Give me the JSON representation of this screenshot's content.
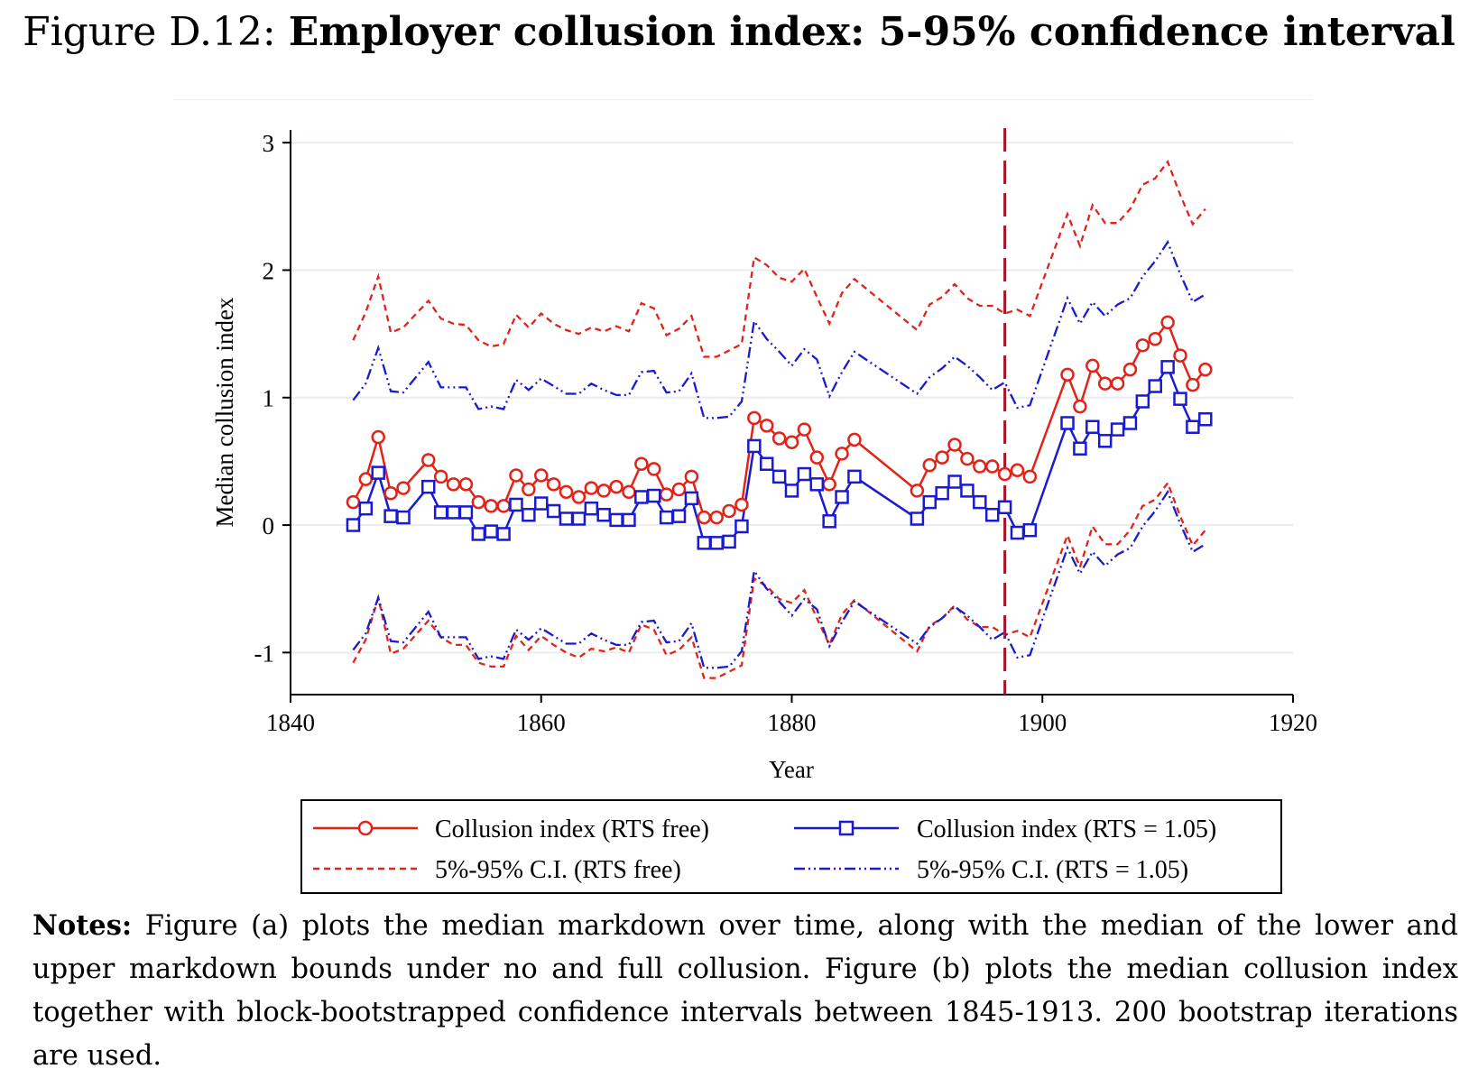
{
  "figure": {
    "label": "Figure D.12:",
    "title": "Employer collusion index: 5-95% confidence interval"
  },
  "notes": {
    "label": "Notes:",
    "text": "Figure (a) plots the median markdown over time, along with the median of the lower and upper markdown bounds under no and full collusion. Figure (b) plots the median collusion index together with block-bootstrapped confidence intervals between 1845-1913. 200 bootstrap iterations are used."
  },
  "colors": {
    "red": "#e2231a",
    "blue": "#1a1ad0",
    "vline": "#a3162b",
    "grid": "#e6eeee"
  },
  "chart_data": {
    "type": "line",
    "xlabel": "Year",
    "ylabel": "Median collusion index",
    "xlim": [
      1840,
      1920
    ],
    "ylim": [
      -1.33,
      3.1
    ],
    "xticks": [
      1840,
      1860,
      1880,
      1900,
      1920
    ],
    "yticks": [
      -1,
      0,
      1,
      2,
      3
    ],
    "grid": true,
    "vline_x": 1897,
    "legend_position": "bottom",
    "x": [
      1845,
      1846,
      1847,
      1848,
      1849,
      1851,
      1852,
      1853,
      1854,
      1855,
      1856,
      1857,
      1858,
      1859,
      1860,
      1861,
      1862,
      1863,
      1864,
      1865,
      1866,
      1867,
      1868,
      1869,
      1870,
      1871,
      1872,
      1873,
      1874,
      1875,
      1876,
      1877,
      1878,
      1879,
      1880,
      1881,
      1882,
      1883,
      1884,
      1885,
      1890,
      1891,
      1892,
      1893,
      1894,
      1895,
      1896,
      1897,
      1898,
      1899,
      1902,
      1903,
      1904,
      1905,
      1906,
      1907,
      1908,
      1909,
      1910,
      1911,
      1912,
      1913
    ],
    "series": [
      {
        "name": "Collusion index (RTS free)",
        "color": "#e2231a",
        "style": "solid",
        "marker": "circle",
        "values": [
          0.18,
          0.36,
          0.69,
          0.25,
          0.29,
          0.51,
          0.38,
          0.32,
          0.32,
          0.18,
          0.15,
          0.15,
          0.39,
          0.28,
          0.39,
          0.32,
          0.26,
          0.22,
          0.29,
          0.27,
          0.3,
          0.26,
          0.48,
          0.44,
          0.24,
          0.28,
          0.38,
          0.06,
          0.06,
          0.11,
          0.16,
          0.84,
          0.78,
          0.68,
          0.65,
          0.75,
          0.53,
          0.32,
          0.56,
          0.67,
          0.27,
          0.47,
          0.53,
          0.63,
          0.52,
          0.46,
          0.46,
          0.4,
          0.43,
          0.38,
          1.18,
          0.93,
          1.25,
          1.11,
          1.11,
          1.22,
          1.41,
          1.46,
          1.59,
          1.33,
          1.1,
          1.22
        ]
      },
      {
        "name": "Collusion index (RTS = 1.05)",
        "color": "#1a1ad0",
        "style": "solid",
        "marker": "square",
        "values": [
          0.0,
          0.13,
          0.41,
          0.07,
          0.06,
          0.3,
          0.1,
          0.1,
          0.1,
          -0.07,
          -0.05,
          -0.07,
          0.16,
          0.08,
          0.17,
          0.11,
          0.05,
          0.05,
          0.13,
          0.08,
          0.04,
          0.04,
          0.22,
          0.23,
          0.06,
          0.07,
          0.21,
          -0.14,
          -0.14,
          -0.13,
          -0.01,
          0.62,
          0.48,
          0.38,
          0.27,
          0.4,
          0.32,
          0.03,
          0.22,
          0.38,
          0.05,
          0.18,
          0.25,
          0.34,
          0.27,
          0.18,
          0.08,
          0.14,
          -0.06,
          -0.04,
          0.8,
          0.6,
          0.77,
          0.66,
          0.75,
          0.8,
          0.97,
          1.09,
          1.24,
          0.99,
          0.77,
          0.83
        ]
      },
      {
        "name": "5%-95% C.I. (RTS free)",
        "color": "#e2231a",
        "style": "dash",
        "upper": [
          1.45,
          1.67,
          1.95,
          1.51,
          1.55,
          1.76,
          1.62,
          1.58,
          1.57,
          1.45,
          1.4,
          1.42,
          1.65,
          1.55,
          1.66,
          1.58,
          1.53,
          1.5,
          1.55,
          1.52,
          1.56,
          1.52,
          1.74,
          1.7,
          1.49,
          1.54,
          1.64,
          1.32,
          1.32,
          1.37,
          1.42,
          2.1,
          2.04,
          1.94,
          1.91,
          2.01,
          1.79,
          1.58,
          1.82,
          1.93,
          1.53,
          1.73,
          1.79,
          1.89,
          1.78,
          1.72,
          1.72,
          1.66,
          1.69,
          1.64,
          2.44,
          2.19,
          2.51,
          2.37,
          2.37,
          2.48,
          2.67,
          2.72,
          2.85,
          2.59,
          2.36,
          2.48
        ],
        "lower": [
          -1.08,
          -0.9,
          -0.57,
          -1.01,
          -0.97,
          -0.75,
          -0.88,
          -0.94,
          -0.94,
          -1.08,
          -1.11,
          -1.11,
          -0.87,
          -0.98,
          -0.87,
          -0.94,
          -1.0,
          -1.04,
          -0.97,
          -0.99,
          -0.96,
          -1.0,
          -0.78,
          -0.82,
          -1.02,
          -0.98,
          -0.88,
          -1.2,
          -1.2,
          -1.15,
          -1.1,
          -0.42,
          -0.48,
          -0.58,
          -0.61,
          -0.51,
          -0.73,
          -0.94,
          -0.7,
          -0.59,
          -0.99,
          -0.79,
          -0.73,
          -0.63,
          -0.74,
          -0.8,
          -0.8,
          -0.86,
          -0.83,
          -0.88,
          -0.08,
          -0.33,
          -0.01,
          -0.15,
          -0.15,
          -0.04,
          0.15,
          0.2,
          0.33,
          0.07,
          -0.16,
          -0.04
        ]
      },
      {
        "name": "5%-95% C.I. (RTS = 1.05)",
        "color": "#1a1ad0",
        "style": "dashdot",
        "upper": [
          0.98,
          1.11,
          1.39,
          1.05,
          1.04,
          1.28,
          1.08,
          1.08,
          1.08,
          0.91,
          0.93,
          0.91,
          1.14,
          1.06,
          1.15,
          1.09,
          1.03,
          1.03,
          1.11,
          1.06,
          1.02,
          1.02,
          1.2,
          1.21,
          1.04,
          1.05,
          1.19,
          0.84,
          0.84,
          0.85,
          0.97,
          1.6,
          1.46,
          1.36,
          1.25,
          1.38,
          1.3,
          1.01,
          1.2,
          1.36,
          1.03,
          1.16,
          1.23,
          1.32,
          1.25,
          1.16,
          1.06,
          1.12,
          0.92,
          0.94,
          1.78,
          1.58,
          1.75,
          1.64,
          1.73,
          1.78,
          1.95,
          2.07,
          2.22,
          1.97,
          1.75,
          1.81
        ],
        "lower": [
          -0.98,
          -0.85,
          -0.57,
          -0.91,
          -0.92,
          -0.68,
          -0.88,
          -0.88,
          -0.88,
          -1.05,
          -1.03,
          -1.05,
          -0.82,
          -0.9,
          -0.81,
          -0.87,
          -0.93,
          -0.93,
          -0.85,
          -0.9,
          -0.94,
          -0.94,
          -0.76,
          -0.75,
          -0.92,
          -0.91,
          -0.77,
          -1.12,
          -1.12,
          -1.11,
          -0.99,
          -0.36,
          -0.5,
          -0.6,
          -0.71,
          -0.58,
          -0.66,
          -0.95,
          -0.76,
          -0.6,
          -0.93,
          -0.8,
          -0.73,
          -0.64,
          -0.71,
          -0.8,
          -0.9,
          -0.84,
          -1.04,
          -1.02,
          -0.18,
          -0.38,
          -0.21,
          -0.32,
          -0.23,
          -0.18,
          -0.01,
          0.11,
          0.26,
          0.01,
          -0.21,
          -0.15
        ]
      }
    ]
  }
}
